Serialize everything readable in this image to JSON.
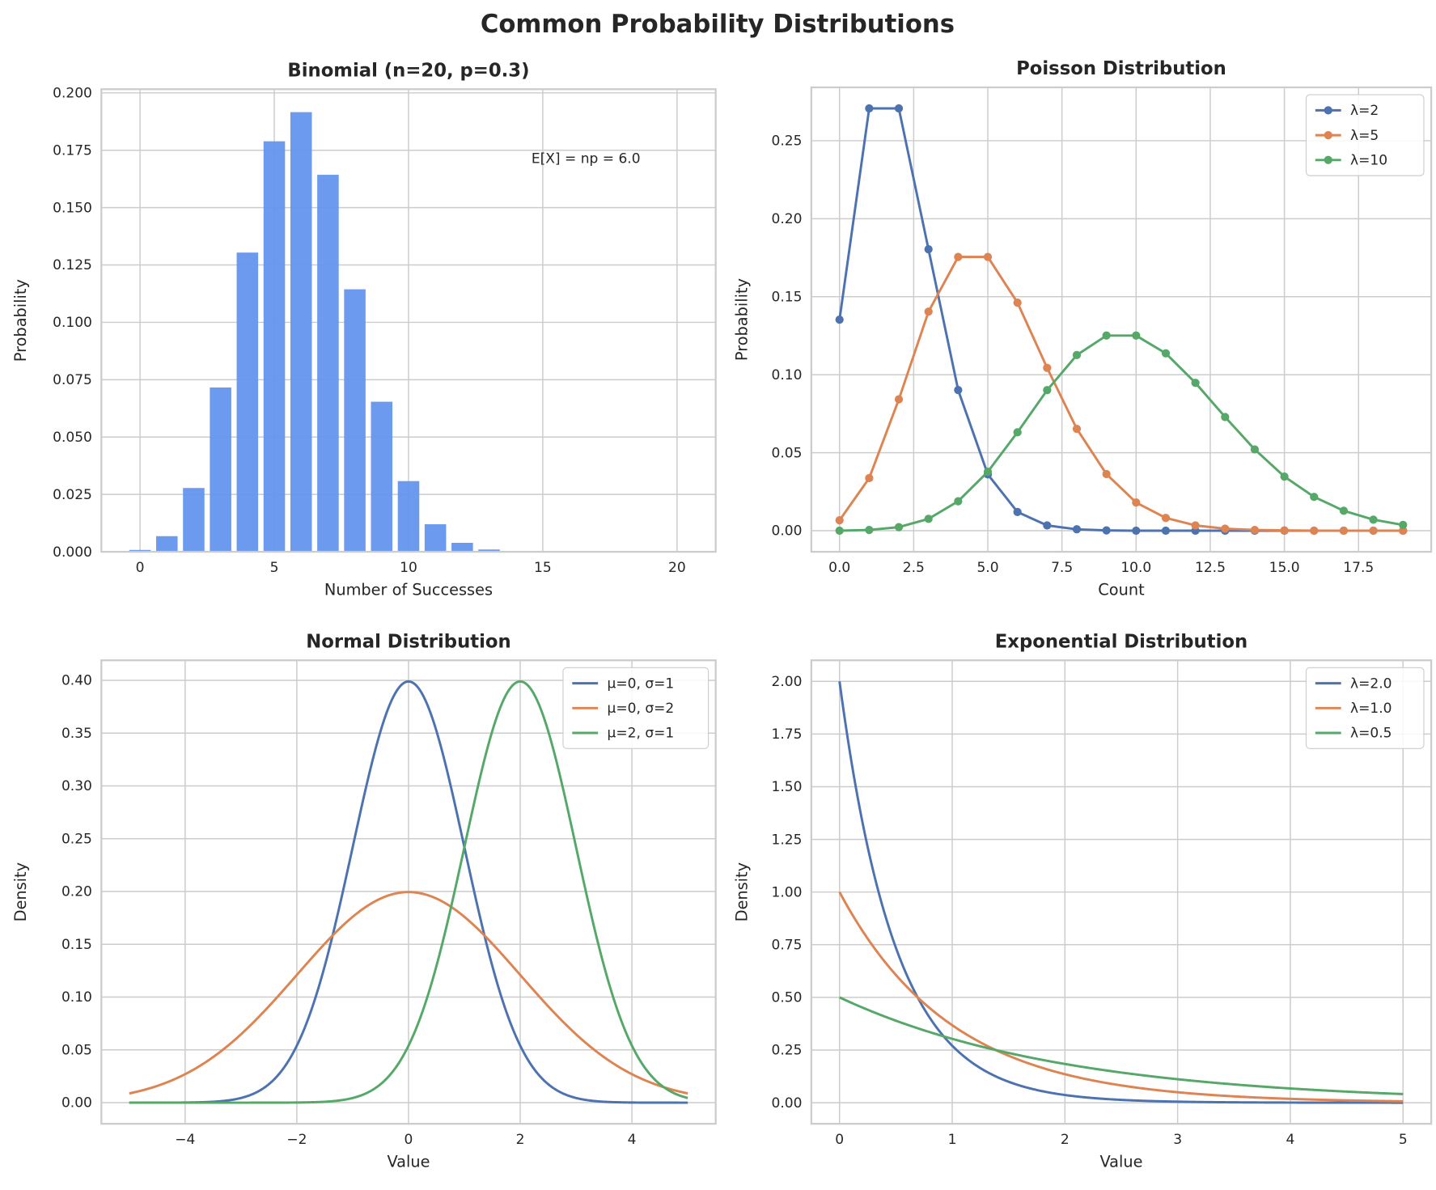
{
  "title": "Common Probability Distributions",
  "colors": {
    "blue": "#4C72B0",
    "orange": "#DD8452",
    "green": "#55A868",
    "bar": "#6495ED",
    "grid": "#cccccc"
  },
  "chart_data": [
    {
      "type": "bar",
      "title": "Binomial (n=20, p=0.3)",
      "xlabel": "Number of Successes",
      "ylabel": "Probability",
      "categories": [
        0,
        1,
        2,
        3,
        4,
        5,
        6,
        7,
        8,
        9,
        10,
        11,
        12,
        13,
        14,
        15,
        16,
        17,
        18,
        19,
        20
      ],
      "values": [
        0.0008,
        0.0068,
        0.0278,
        0.0716,
        0.1304,
        0.1789,
        0.1916,
        0.1643,
        0.1144,
        0.0654,
        0.0308,
        0.012,
        0.0039,
        0.001,
        0.0002,
        0.0,
        0.0,
        0.0,
        0.0,
        0.0,
        0.0
      ],
      "xlim": [
        -1.44,
        21.44
      ],
      "ylim": [
        0,
        0.2016
      ],
      "xticks": [
        0,
        5,
        10,
        15,
        20
      ],
      "xtick_labels": [
        "0",
        "5",
        "10",
        "15",
        "20"
      ],
      "yticks": [
        0,
        0.025,
        0.05,
        0.075,
        0.1,
        0.125,
        0.15,
        0.175,
        0.2
      ],
      "ytick_labels": [
        "0.000",
        "0.025",
        "0.050",
        "0.075",
        "0.100",
        "0.125",
        "0.150",
        "0.175",
        "0.200"
      ],
      "annotation": "E[X] = np = 6.0",
      "grid": true
    },
    {
      "type": "line",
      "title": "Poisson Distribution",
      "xlabel": "Count",
      "ylabel": "Probability",
      "markers": true,
      "x": [
        0,
        1,
        2,
        3,
        4,
        5,
        6,
        7,
        8,
        9,
        10,
        11,
        12,
        13,
        14,
        15,
        16,
        17,
        18,
        19
      ],
      "series": [
        {
          "name": "λ=2",
          "color": "blue",
          "values": [
            0.1353,
            0.2707,
            0.2707,
            0.1804,
            0.0902,
            0.0361,
            0.012,
            0.0034,
            0.0009,
            0.0002,
            0.0,
            0.0,
            0.0,
            0.0,
            0.0,
            0.0,
            0.0,
            0.0,
            0.0,
            0.0
          ]
        },
        {
          "name": "λ=5",
          "color": "orange",
          "values": [
            0.0067,
            0.0337,
            0.0842,
            0.1404,
            0.1755,
            0.1755,
            0.1462,
            0.1044,
            0.0653,
            0.0363,
            0.0181,
            0.0082,
            0.0034,
            0.0013,
            0.0005,
            0.0002,
            0.0,
            0.0,
            0.0,
            0.0
          ]
        },
        {
          "name": "λ=10",
          "color": "green",
          "values": [
            0.0,
            0.0005,
            0.0023,
            0.0076,
            0.0189,
            0.0378,
            0.0631,
            0.0901,
            0.1126,
            0.1251,
            0.1251,
            0.1137,
            0.0948,
            0.0729,
            0.0521,
            0.0347,
            0.0217,
            0.0128,
            0.0071,
            0.0037
          ]
        }
      ],
      "xlim": [
        -0.95,
        19.95
      ],
      "ylim": [
        -0.0135,
        0.2842
      ],
      "xticks": [
        0,
        2.5,
        5,
        7.5,
        10,
        12.5,
        15,
        17.5
      ],
      "xtick_labels": [
        "0.0",
        "2.5",
        "5.0",
        "7.5",
        "10.0",
        "12.5",
        "15.0",
        "17.5"
      ],
      "yticks": [
        0,
        0.05,
        0.1,
        0.15,
        0.2,
        0.25
      ],
      "ytick_labels": [
        "0.00",
        "0.05",
        "0.10",
        "0.15",
        "0.20",
        "0.25"
      ],
      "legend": "top-right",
      "grid": true
    },
    {
      "type": "line",
      "title": "Normal Distribution",
      "xlabel": "Value",
      "ylabel": "Density",
      "distribution": "normal",
      "x_range": [
        -5,
        5
      ],
      "series": [
        {
          "name": "μ=0, σ=1",
          "color": "blue",
          "mu": 0,
          "sigma": 1
        },
        {
          "name": "μ=0, σ=2",
          "color": "orange",
          "mu": 0,
          "sigma": 2
        },
        {
          "name": "μ=2, σ=1",
          "color": "green",
          "mu": 2,
          "sigma": 1
        }
      ],
      "xlim": [
        -5.5,
        5.5
      ],
      "ylim": [
        -0.02,
        0.419
      ],
      "xticks": [
        -4,
        -2,
        0,
        2,
        4
      ],
      "xtick_labels": [
        "−4",
        "−2",
        "0",
        "2",
        "4"
      ],
      "yticks": [
        0,
        0.05,
        0.1,
        0.15,
        0.2,
        0.25,
        0.3,
        0.35,
        0.4
      ],
      "ytick_labels": [
        "0.00",
        "0.05",
        "0.10",
        "0.15",
        "0.20",
        "0.25",
        "0.30",
        "0.35",
        "0.40"
      ],
      "legend": "top-right",
      "grid": true
    },
    {
      "type": "line",
      "title": "Exponential Distribution",
      "xlabel": "Value",
      "ylabel": "Density",
      "distribution": "exponential",
      "x_range": [
        0,
        5
      ],
      "series": [
        {
          "name": "λ=2.0",
          "color": "blue",
          "lambda": 2.0
        },
        {
          "name": "λ=1.0",
          "color": "orange",
          "lambda": 1.0
        },
        {
          "name": "λ=0.5",
          "color": "green",
          "lambda": 0.5
        }
      ],
      "xlim": [
        -0.25,
        5.25
      ],
      "ylim": [
        -0.1,
        2.1
      ],
      "xticks": [
        0,
        1,
        2,
        3,
        4,
        5
      ],
      "xtick_labels": [
        "0",
        "1",
        "2",
        "3",
        "4",
        "5"
      ],
      "yticks": [
        0,
        0.25,
        0.5,
        0.75,
        1,
        1.25,
        1.5,
        1.75,
        2
      ],
      "ytick_labels": [
        "0.00",
        "0.25",
        "0.50",
        "0.75",
        "1.00",
        "1.25",
        "1.50",
        "1.75",
        "2.00"
      ],
      "legend": "top-right",
      "grid": true
    }
  ]
}
